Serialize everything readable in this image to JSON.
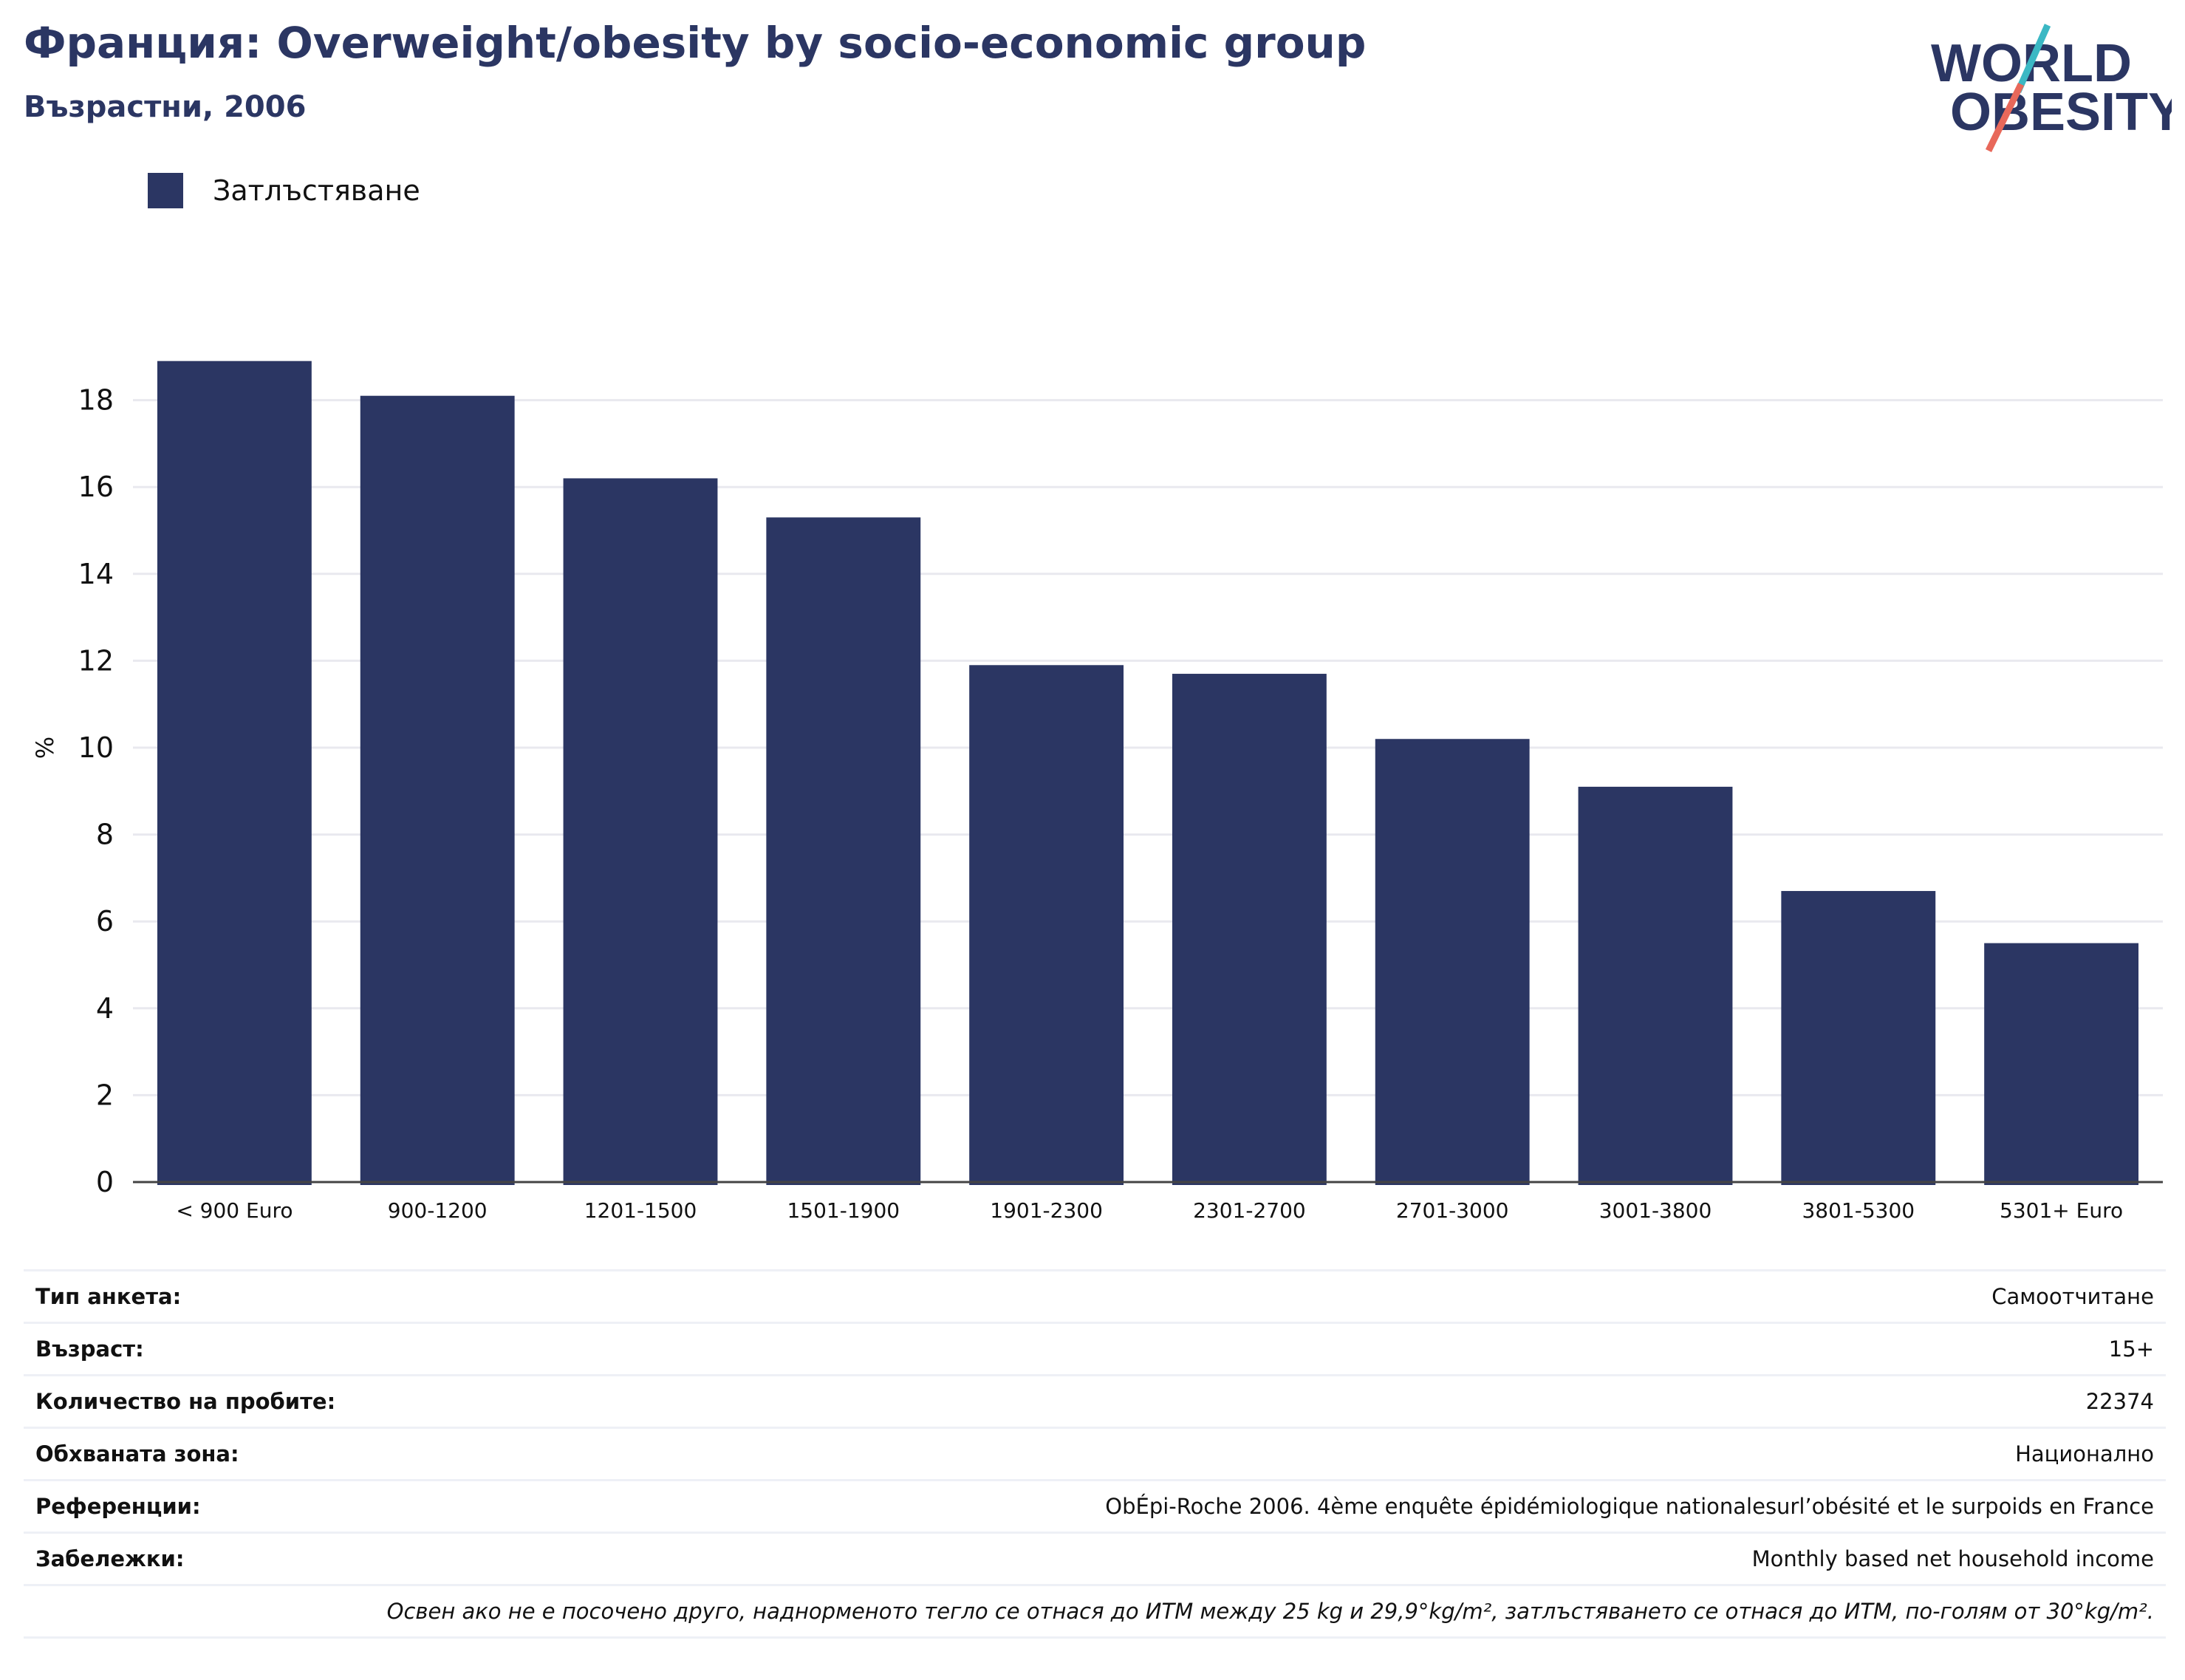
{
  "header": {
    "title": "Франция: Overweight/obesity by socio-economic group",
    "subtitle": "Възрастни, 2006"
  },
  "logo": {
    "line1": "WORLD",
    "line2": "OBESITY",
    "name": "world-obesity-logo"
  },
  "colors": {
    "bar": "#2b3663",
    "title": "#2b3663",
    "logo_teal": "#3bb8c4",
    "logo_coral": "#e8685a",
    "grid": "#e9e9ef"
  },
  "chart_data": {
    "type": "bar",
    "title": "Франция: Overweight/obesity by socio-economic group",
    "subtitle": "Възрастни, 2006",
    "xlabel": "",
    "ylabel": "%",
    "categories": [
      "< 900 Euro",
      "900-1200",
      "1201-1500",
      "1501-1900",
      "1901-2300",
      "2301-2700",
      "2701-3000",
      "3001-3800",
      "3801-5300",
      "5301+ Euro"
    ],
    "series": [
      {
        "name": "Затлъстяване",
        "values": [
          18.9,
          18.1,
          16.2,
          15.3,
          11.9,
          11.7,
          10.2,
          9.1,
          6.7,
          5.5
        ]
      }
    ],
    "ylim": [
      0,
      19
    ],
    "yticks": [
      "0",
      "2",
      "4",
      "6",
      "8",
      "10",
      "12",
      "14",
      "16",
      "18"
    ],
    "grid": true,
    "legend": "top-left"
  },
  "info": {
    "rows": [
      {
        "key": "Тип анкета:",
        "value": "Самоотчитане"
      },
      {
        "key": "Възраст:",
        "value": "15+"
      },
      {
        "key": "Количество на пробите:",
        "value": "22374"
      },
      {
        "key": "Обхваната зона:",
        "value": "Национално"
      },
      {
        "key": "Референции:",
        "value": "ObÉpi-Roche 2006. 4ème enquête épidémiologique nationalesurl’obésité et le surpoids en France"
      },
      {
        "key": "Забележки:",
        "value": "Monthly based net household income"
      }
    ],
    "footnote": "Освен ако не е посочено друго, наднорменото тегло се отнася до ИТМ между 25 kg и 29,9°kg/m², затлъстяването се отнася до ИТМ, по-голям от 30°kg/m²."
  }
}
